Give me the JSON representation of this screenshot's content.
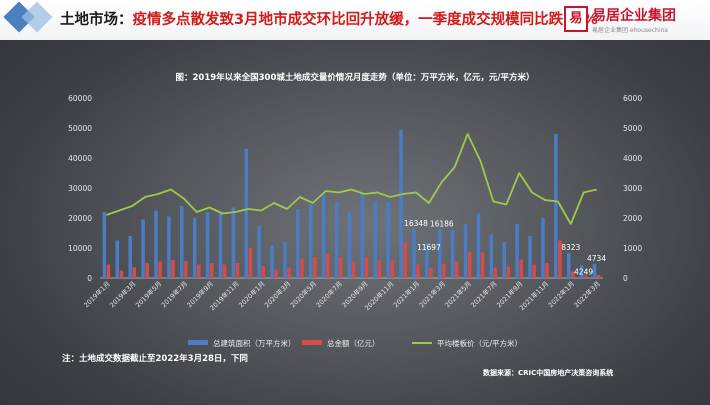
{
  "header": {
    "title_prefix": "土地市场：",
    "title_main": "疫情多点散发致3月地市成交环比回升放缓，一季度成交规模同比跌59%",
    "logo_glyph": "易",
    "brand_name": "易居企业集团",
    "brand_sub": "易居企业集团  ehousechina"
  },
  "footnote": "注：土地成交数据截止至2022年3月28日，下同",
  "source": "数据来源：CRIC中国房地产决策咨询系统",
  "colors": {
    "area_bar": "#4b7dc6",
    "amount_bar": "#d94b45",
    "price_line": "#9fc94a",
    "accent": "#d11a1a"
  },
  "chart_data": {
    "type": "bar",
    "title": "图：2019年以来全国300城土地成交量价情况月度走势（单位：万平方米，亿元，元/平方米）",
    "x_tick_labels": [
      "2019年1月",
      "2019年3月",
      "2019年5月",
      "2019年7月",
      "2019年9月",
      "2019年11月",
      "2020年1月",
      "2020年3月",
      "2020年5月",
      "2020年7月",
      "2020年9月",
      "2020年11月",
      "2021年1月",
      "2021年3月",
      "2021年5月",
      "2021年7月",
      "2021年9月",
      "2021年11月",
      "2022年1月",
      "2022年3月"
    ],
    "y_left": {
      "ylim": [
        0,
        60000
      ],
      "ticks": [
        "0",
        "10000",
        "20000",
        "30000",
        "40000",
        "50000",
        "60000"
      ]
    },
    "y_right": {
      "ylim": [
        0,
        6000
      ],
      "ticks": [
        "0",
        "1000",
        "2000",
        "3000",
        "4000",
        "5000",
        "6000"
      ]
    },
    "series": [
      {
        "name": "总建筑面积（万平方米）",
        "axis": "left",
        "values": [
          22000,
          12500,
          14000,
          19500,
          22500,
          20500,
          24000,
          20000,
          22000,
          21500,
          23500,
          43000,
          17500,
          11000,
          12000,
          23000,
          24500,
          27500,
          25500,
          22000,
          28500,
          25500,
          25500,
          49500,
          16348,
          11697,
          16186,
          16000,
          18000,
          21500,
          14500,
          12000,
          18000,
          14000,
          20000,
          48000,
          8323,
          4249,
          4734
        ]
      },
      {
        "name": "总金额（亿元）",
        "axis": "left",
        "values": [
          4500,
          2500,
          3600,
          5000,
          5500,
          6000,
          5600,
          4500,
          5000,
          4500,
          5000,
          10000,
          4000,
          2800,
          3500,
          6500,
          7000,
          8000,
          7000,
          5500,
          7000,
          6000,
          6000,
          12000,
          4500,
          3500,
          4800,
          5500,
          8800,
          8500,
          3500,
          3800,
          6200,
          4500,
          5000,
          12500,
          2200,
          800,
          1000
        ]
      },
      {
        "name": "平均楼板价（元/平方米）",
        "axis": "right",
        "values": [
          2100,
          2250,
          2400,
          2700,
          2800,
          2950,
          2650,
          2200,
          2350,
          2150,
          2200,
          2300,
          2250,
          2500,
          2300,
          2700,
          2500,
          2900,
          2850,
          2950,
          2800,
          2850,
          2700,
          2800,
          2850,
          2500,
          3200,
          3700,
          4800,
          3900,
          2550,
          2450,
          3500,
          2850,
          2600,
          2550,
          1800,
          2850,
          2950
        ]
      }
    ],
    "data_labels": [
      {
        "index": 24,
        "series": 0,
        "text": "16348"
      },
      {
        "index": 25,
        "series": 0,
        "text": "11697"
      },
      {
        "index": 26,
        "series": 0,
        "text": "16186"
      },
      {
        "index": 36,
        "series": 0,
        "text": "8323"
      },
      {
        "index": 37,
        "series": 0,
        "text": "4249"
      },
      {
        "index": 38,
        "series": 0,
        "text": "4734"
      }
    ],
    "legend_position": "bottom",
    "grid": false
  }
}
